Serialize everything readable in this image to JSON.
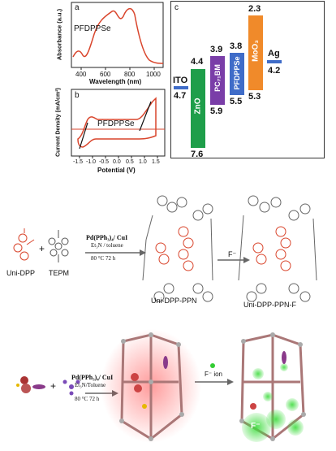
{
  "panel_a": {
    "tag": "a",
    "ylabel": "Absorbance (a.u.)",
    "xlabel": "Wavelength (nm)",
    "legend": "PFDPPSe",
    "xticks": [
      "400",
      "600",
      "800",
      "1000"
    ],
    "color": "#d9452c"
  },
  "panel_b": {
    "tag": "b",
    "ylabel": "Current Density (mA/cm²)",
    "xlabel": "Potential (V)",
    "legend": "PFDPPSe",
    "xticks": [
      "-1.5",
      "-1.0",
      "-0.5",
      "0.0",
      "0.5",
      "1.0",
      "1.5"
    ],
    "color": "#d9452c"
  },
  "panel_c": {
    "tag": "c",
    "ito": {
      "label": "ITO",
      "value": "4.7"
    },
    "zno": {
      "label": "ZnO",
      "top": "4.4",
      "bottom": "7.6",
      "color": "#1e9e4a"
    },
    "pcbm": {
      "label": "PC₇₁BM",
      "top": "3.9",
      "bottom": "5.9",
      "color": "#7a3ea8"
    },
    "pfdppse": {
      "label": "PFDPPSe",
      "top": "3.8",
      "bottom": "5.5",
      "color": "#3f6cc8"
    },
    "moo3": {
      "label": "MoO₃",
      "top": "2.3",
      "bottom": "5.3",
      "color": "#f08a2a"
    },
    "ag": {
      "label": "Ag",
      "value": "4.2"
    }
  },
  "scheme1": {
    "monomer1": "Uni-DPP",
    "monomer2": "TEPM",
    "plus": "+",
    "cond1": "Pd(PPh₃)₄/ CuI",
    "cond2": "Et₃N / toluene",
    "cond3": "80 °C  72 h",
    "product1": "Uni-DPP-PPN",
    "arrow_label": "F⁻",
    "product2": "Uni-DPP-PPN-F"
  },
  "scheme2": {
    "plus": "+",
    "cond1": "Pd(PPh₃)₄/ CuI",
    "cond2": "Et₃N/Toluene",
    "cond3": "80 °C  72 h",
    "arrow_label": "F⁻ ion",
    "ion_label": "F⁻"
  }
}
